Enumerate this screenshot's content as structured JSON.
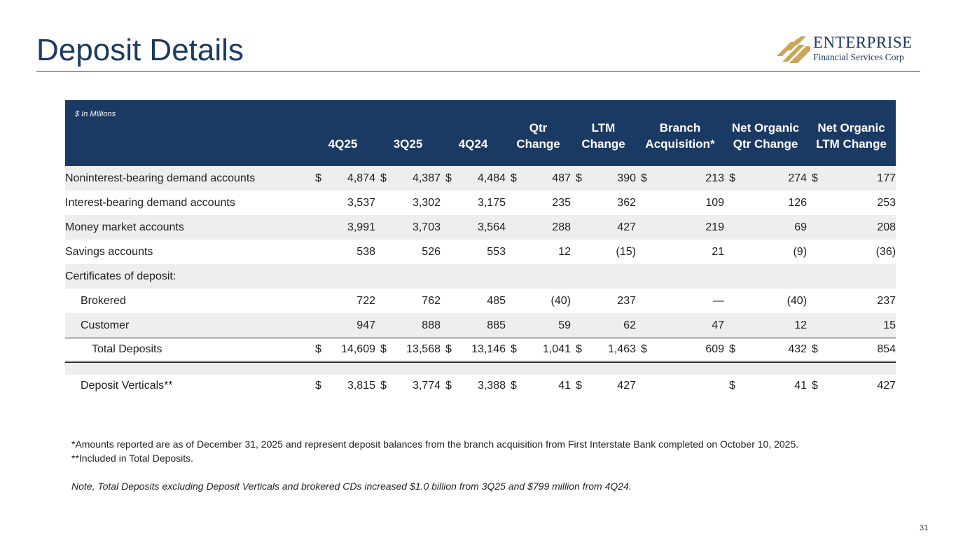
{
  "slide": {
    "title": "Deposit Details",
    "page_number": "31"
  },
  "logo": {
    "name": "ENTERPRISE",
    "subtitle": "Financial Services Corp"
  },
  "table": {
    "units_note": "$ In Millions",
    "headers": [
      [
        "4Q25"
      ],
      [
        "3Q25"
      ],
      [
        "4Q24"
      ],
      [
        "Qtr",
        "Change"
      ],
      [
        "LTM",
        "Change"
      ],
      [
        "Branch",
        "Acquisition*"
      ],
      [
        "Net Organic",
        "Qtr Change"
      ],
      [
        "Net Organic",
        "LTM Change"
      ]
    ],
    "rows": [
      {
        "label": "Noninterest-bearing demand accounts",
        "dollar": true,
        "values": [
          "4,874",
          "4,387",
          "4,484",
          "487",
          "390",
          "213",
          "274",
          "177"
        ]
      },
      {
        "label": "Interest-bearing demand accounts",
        "dollar": false,
        "values": [
          "3,537",
          "3,302",
          "3,175",
          "235",
          "362",
          "109",
          "126",
          "253"
        ]
      },
      {
        "label": "Money market accounts",
        "dollar": false,
        "values": [
          "3,991",
          "3,703",
          "3,564",
          "288",
          "427",
          "219",
          "69",
          "208"
        ]
      },
      {
        "label": "Savings accounts",
        "dollar": false,
        "values": [
          "538",
          "526",
          "553",
          "12",
          "(15)",
          "21",
          "(9)",
          "(36)"
        ]
      },
      {
        "label": "Certificates of deposit:",
        "dollar": false,
        "values": [
          "",
          "",
          "",
          "",
          "",
          "",
          "",
          ""
        ]
      },
      {
        "label": "Brokered",
        "dollar": false,
        "values": [
          "722",
          "762",
          "485",
          "(40)",
          "237",
          "—",
          "(40)",
          "237"
        ]
      },
      {
        "label": "Customer",
        "dollar": false,
        "values": [
          "947",
          "888",
          "885",
          "59",
          "62",
          "47",
          "12",
          "15"
        ]
      }
    ],
    "total": {
      "label": "Total Deposits",
      "values": [
        "14,609",
        "13,568",
        "13,146",
        "1,041",
        "1,463",
        "609",
        "432",
        "854"
      ]
    },
    "verticals": {
      "label": "Deposit Verticals**",
      "values": [
        "3,815",
        "3,774",
        "3,388",
        "41",
        "427",
        "",
        "41",
        "427"
      ]
    },
    "currency_symbol": "$"
  },
  "notes": {
    "footnote_1": "*Amounts reported are as of December 31, 2025 and represent deposit balances from the branch acquisition from First Interstate Bank completed on October 10, 2025.",
    "footnote_2": "**Included in Total Deposits.",
    "note": "Note, Total Deposits excluding Deposit Verticals and brokered CDs increased $1.0 billion from 3Q25 and $799 million from 4Q24."
  },
  "colors": {
    "navy": "#1b3a63",
    "gold": "#b49b57",
    "row_shade": "#eeeeee"
  }
}
